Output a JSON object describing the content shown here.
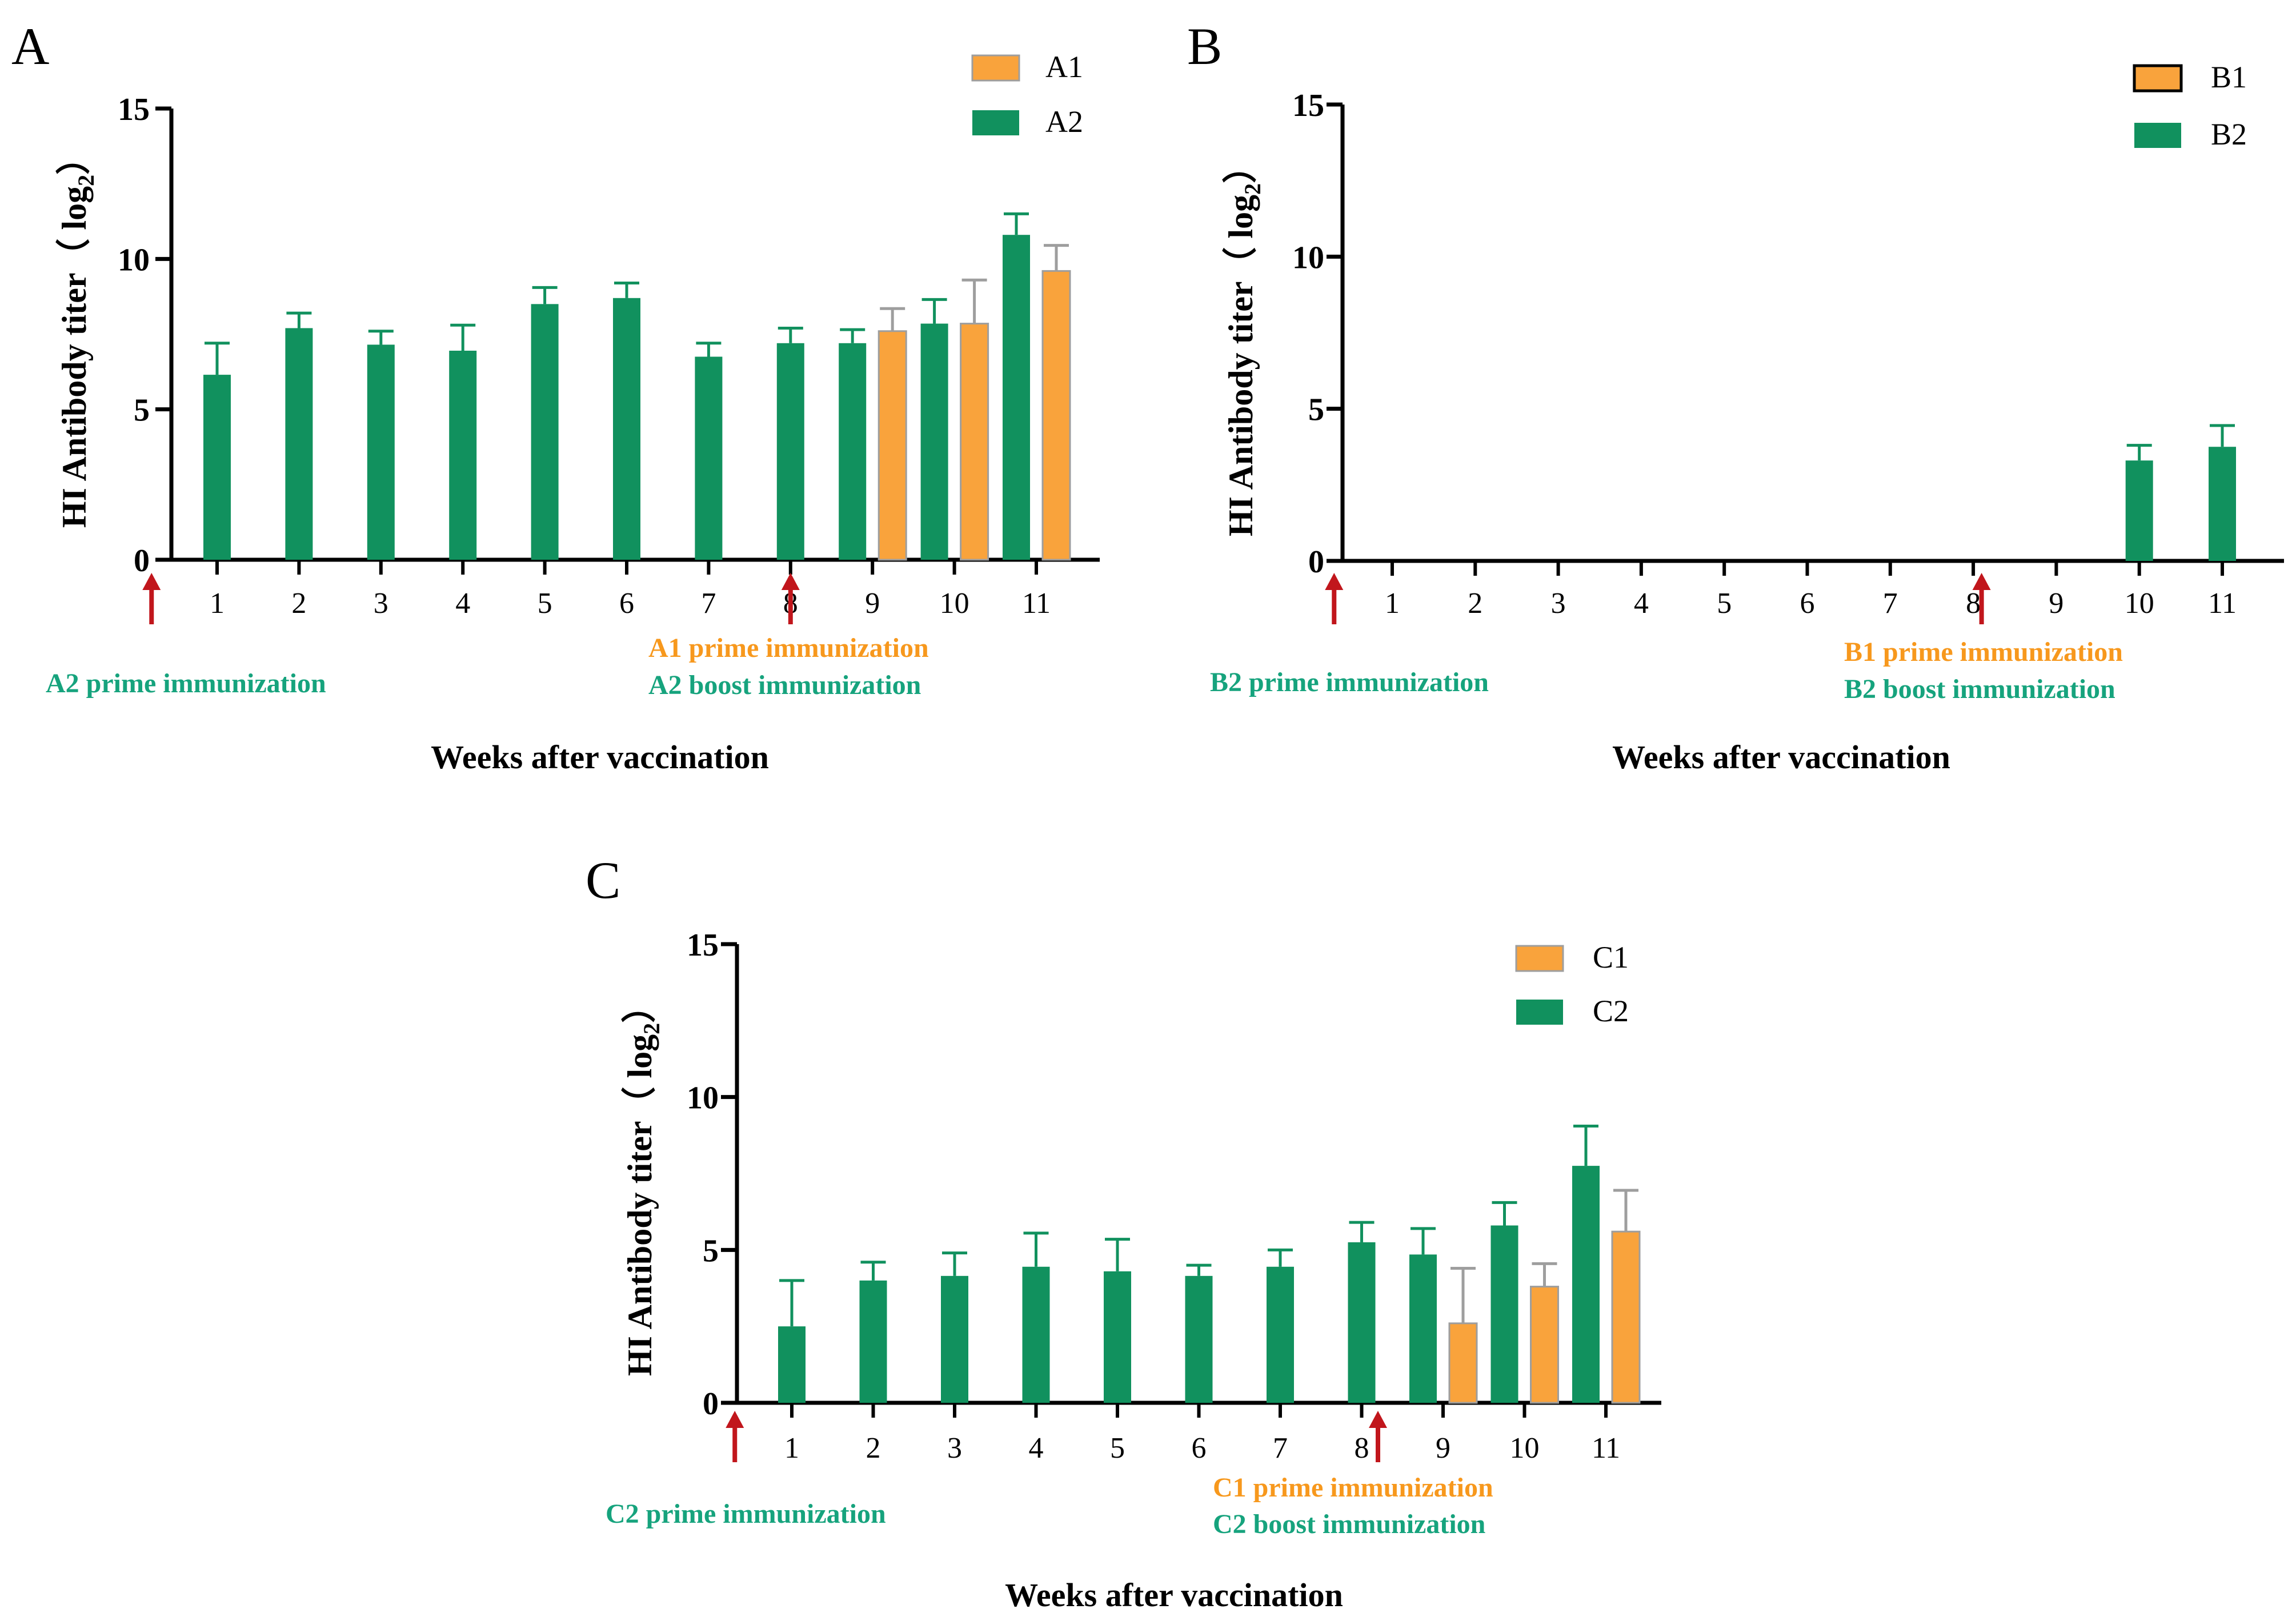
{
  "colors": {
    "series1": "#F9A33C",
    "series1_edge": "#9E9E9E",
    "series1_label": "#F7981D",
    "series2": "#11915E",
    "series2_label": "#16A37D",
    "arrow": "#C1161C",
    "axis": "#000000"
  },
  "chart_data": [
    {
      "panel_label": "A",
      "type": "bar",
      "ylabel": "HI Antibody titer（ log",
      "ylabel_sub": "2",
      "ylabel_close": "）",
      "xlabel": "Weeks after vaccination",
      "ylim": [
        0,
        15
      ],
      "yticks": [
        0,
        5,
        10,
        15
      ],
      "categories": [
        "1",
        "2",
        "3",
        "4",
        "5",
        "6",
        "7",
        "8",
        "9",
        "10",
        "11"
      ],
      "series": [
        {
          "name": "A1",
          "values": [
            null,
            null,
            null,
            null,
            null,
            null,
            null,
            null,
            7.6,
            7.85,
            9.6
          ],
          "errors": [
            null,
            null,
            null,
            null,
            null,
            null,
            null,
            null,
            0.75,
            1.45,
            0.85
          ]
        },
        {
          "name": "A2",
          "values": [
            6.15,
            7.7,
            7.15,
            6.95,
            8.5,
            8.7,
            6.75,
            7.2,
            7.2,
            7.85,
            10.8
          ],
          "errors": [
            1.05,
            0.5,
            0.45,
            0.85,
            0.55,
            0.5,
            0.45,
            0.5,
            0.45,
            0.8,
            0.7
          ]
        }
      ],
      "arrows_at_week": [
        0.2,
        8.0
      ],
      "annotations": {
        "prime_series2": "A2 prime immunization",
        "prime_series1": "A1 prime immunization",
        "boost_series2": "A2 boost immunization"
      }
    },
    {
      "panel_label": "B",
      "type": "bar",
      "ylabel": "HI Antibody titer（ log",
      "ylabel_sub": "2",
      "ylabel_close": "）",
      "xlabel": "Weeks after vaccination",
      "ylim": [
        0,
        15
      ],
      "yticks": [
        0,
        5,
        10,
        15
      ],
      "categories": [
        "1",
        "2",
        "3",
        "4",
        "5",
        "6",
        "7",
        "8",
        "9",
        "10",
        "11"
      ],
      "series": [
        {
          "name": "B1",
          "values": [
            null,
            null,
            null,
            null,
            null,
            null,
            null,
            null,
            null,
            null,
            null
          ],
          "errors": [
            null,
            null,
            null,
            null,
            null,
            null,
            null,
            null,
            null,
            null,
            null
          ]
        },
        {
          "name": "B2",
          "values": [
            null,
            null,
            null,
            null,
            null,
            null,
            null,
            null,
            null,
            3.3,
            3.75
          ],
          "errors": [
            null,
            null,
            null,
            null,
            null,
            null,
            null,
            null,
            null,
            0.5,
            0.7
          ]
        }
      ],
      "arrows_at_week": [
        0.3,
        8.1
      ],
      "annotations": {
        "prime_series2": "B2 prime immunization",
        "prime_series1": "B1 prime immunization",
        "boost_series2": "B2 boost immunization"
      }
    },
    {
      "panel_label": "C",
      "type": "bar",
      "ylabel": "HI Antibody titer（ log",
      "ylabel_sub": "2",
      "ylabel_close": "）",
      "xlabel": "Weeks after vaccination",
      "ylim": [
        0,
        15
      ],
      "yticks": [
        0,
        5,
        10,
        15
      ],
      "categories": [
        "1",
        "2",
        "3",
        "4",
        "5",
        "6",
        "7",
        "8",
        "9",
        "10",
        "11"
      ],
      "series": [
        {
          "name": "C1",
          "values": [
            null,
            null,
            null,
            null,
            null,
            null,
            null,
            null,
            2.6,
            3.8,
            5.6
          ],
          "errors": [
            null,
            null,
            null,
            null,
            null,
            null,
            null,
            null,
            1.8,
            0.75,
            1.35
          ]
        },
        {
          "name": "C2",
          "values": [
            2.5,
            4.0,
            4.15,
            4.45,
            4.3,
            4.15,
            4.45,
            5.25,
            4.85,
            5.8,
            7.75
          ],
          "errors": [
            1.5,
            0.6,
            0.75,
            1.1,
            1.05,
            0.35,
            0.55,
            0.65,
            0.85,
            0.75,
            1.3
          ]
        }
      ],
      "arrows_at_week": [
        0.3,
        8.2
      ],
      "annotations": {
        "prime_series2": "C2 prime immunization",
        "prime_series1": "C1 prime immunization",
        "boost_series2": "C2 boost immunization"
      }
    }
  ]
}
